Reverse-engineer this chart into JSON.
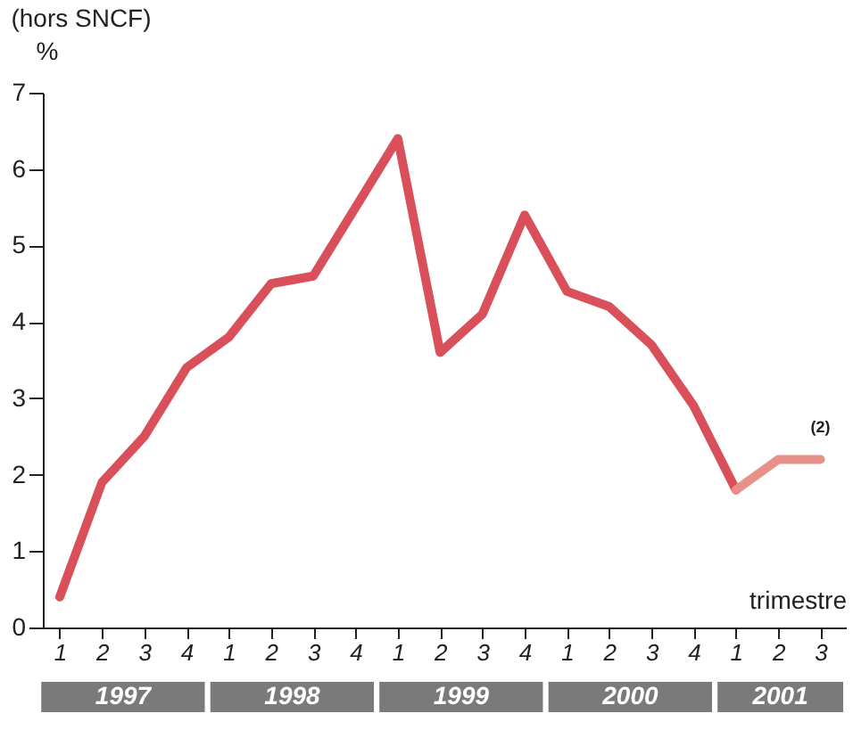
{
  "chart_data": {
    "type": "line",
    "title": "(hors SNCF)",
    "ylabel": "%",
    "xlabel": "trimestre",
    "categories": [
      "1",
      "2",
      "3",
      "4",
      "1",
      "2",
      "3",
      "4",
      "1",
      "2",
      "3",
      "4",
      "1",
      "2",
      "3",
      "4",
      "1",
      "2",
      "3"
    ],
    "series": [
      {
        "color": "#d9505a",
        "values": [
          0.4,
          1.9,
          2.5,
          3.4,
          3.8,
          4.5,
          4.6,
          5.5,
          6.4,
          3.6,
          4.1,
          5.4,
          4.4,
          4.2,
          3.7,
          2.9,
          1.8,
          null,
          null
        ]
      },
      {
        "color": "#e8918a",
        "values": [
          null,
          null,
          null,
          null,
          null,
          null,
          null,
          null,
          null,
          null,
          null,
          null,
          null,
          null,
          null,
          null,
          1.8,
          2.2,
          2.2
        ]
      }
    ],
    "ylim": [
      0,
      7
    ],
    "yticks": [
      0,
      1,
      2,
      3,
      4,
      5,
      6,
      7
    ],
    "grid": false,
    "legend": false,
    "marker": "none",
    "line_style": "solid",
    "annotations": [
      "1997",
      "1998",
      "1999",
      "2000",
      "2001",
      "(2)"
    ]
  }
}
